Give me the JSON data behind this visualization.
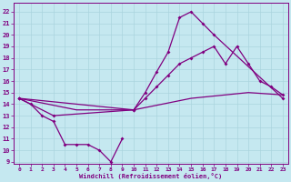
{
  "xlabel": "Windchill (Refroidissement éolien,°C)",
  "xlim": [
    -0.5,
    23.5
  ],
  "ylim": [
    8.8,
    22.8
  ],
  "yticks": [
    9,
    10,
    11,
    12,
    13,
    14,
    15,
    16,
    17,
    18,
    19,
    20,
    21,
    22
  ],
  "xticks": [
    0,
    1,
    2,
    3,
    4,
    5,
    6,
    7,
    8,
    9,
    10,
    11,
    12,
    13,
    14,
    15,
    16,
    17,
    18,
    19,
    20,
    21,
    22,
    23
  ],
  "background_color": "#c5e8f0",
  "grid_color": "#aad4de",
  "line_color": "#800080",
  "line1_x": [
    0,
    1,
    2,
    3,
    4,
    5,
    6,
    7,
    8,
    9
  ],
  "line1_y": [
    14.5,
    14.0,
    13.0,
    12.5,
    10.5,
    10.5,
    10.5,
    10.0,
    9.0,
    11.0
  ],
  "line2_x": [
    0,
    3,
    10,
    11,
    12,
    13,
    14,
    15,
    16,
    17,
    23
  ],
  "line2_y": [
    14.5,
    13.0,
    13.5,
    15.0,
    16.8,
    18.5,
    21.5,
    22.0,
    21.0,
    20.0,
    14.5
  ],
  "line3_x": [
    0,
    5,
    10,
    15,
    20,
    23
  ],
  "line3_y": [
    14.5,
    13.5,
    13.5,
    14.5,
    15.0,
    14.8
  ],
  "line4_x": [
    0,
    10,
    11,
    12,
    13,
    14,
    15,
    16,
    17,
    18,
    19,
    20,
    21,
    22,
    23
  ],
  "line4_y": [
    14.5,
    13.5,
    14.5,
    15.5,
    16.5,
    17.5,
    18.0,
    18.5,
    19.0,
    17.5,
    19.0,
    17.5,
    16.0,
    15.5,
    14.8
  ]
}
